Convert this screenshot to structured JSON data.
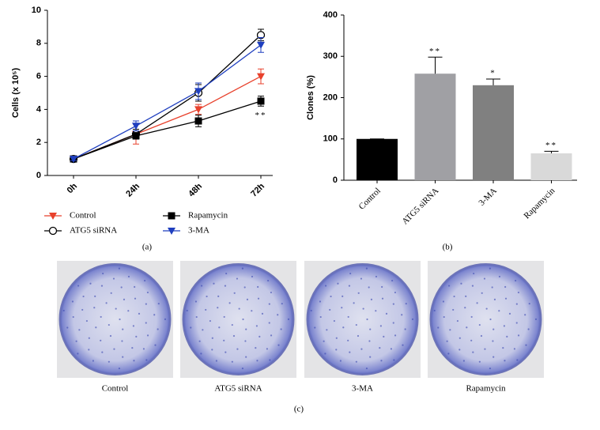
{
  "chart_data": [
    {
      "type": "line",
      "panel_label": "(a)",
      "y_label": "Cells (x 10⁵)",
      "categories": [
        "0h",
        "24h",
        "48h",
        "72h"
      ],
      "ylim": [
        0,
        10
      ],
      "yticks": [
        0,
        2,
        4,
        6,
        8,
        10
      ],
      "series": [
        {
          "name": "Control",
          "color": "#e8412c",
          "marker": "triangle-down",
          "values": [
            1,
            2.5,
            4.0,
            6.0
          ],
          "errors": [
            0.1,
            0.6,
            0.3,
            0.45
          ]
        },
        {
          "name": "ATG5 siRNA",
          "color": "#000000",
          "marker": "circle-open",
          "values": [
            1,
            2.5,
            5.0,
            8.5
          ],
          "errors": [
            0.1,
            0.3,
            0.5,
            0.35
          ]
        },
        {
          "name": "Rapamycin",
          "color": "#000000",
          "marker": "square",
          "values": [
            1,
            2.4,
            3.3,
            4.5
          ],
          "errors": [
            0.1,
            0.2,
            0.35,
            0.3
          ],
          "annotations": [
            null,
            null,
            null,
            "**"
          ]
        },
        {
          "name": "3-MA",
          "color": "#1f3fbf",
          "marker": "triangle-down",
          "values": [
            1,
            3.0,
            5.1,
            7.9
          ],
          "errors": [
            0.1,
            0.3,
            0.5,
            0.45
          ]
        }
      ]
    },
    {
      "type": "bar",
      "panel_label": "(b)",
      "y_label": "Clones (%)",
      "categories": [
        "Control",
        "ATG5 siRNA",
        "3-MA",
        "Rapamycin"
      ],
      "values": [
        100,
        258,
        230,
        65
      ],
      "errors": [
        0,
        40,
        15,
        5
      ],
      "colors": [
        "#000000",
        "#a0a0a4",
        "#808080",
        "#d9d9d9"
      ],
      "annotations": [
        null,
        "**",
        "*",
        "**"
      ],
      "ylim": [
        0,
        400
      ],
      "yticks": [
        0,
        100,
        200,
        300,
        400
      ]
    }
  ],
  "photos": {
    "captions": [
      "Control",
      "ATG5 siRNA",
      "3-MA",
      "Rapamycin"
    ],
    "panel_label": "(c)"
  }
}
